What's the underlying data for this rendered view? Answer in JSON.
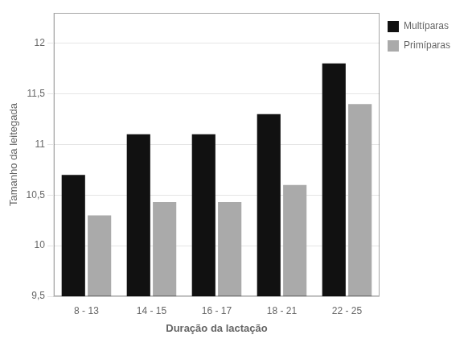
{
  "chart_data": {
    "type": "bar",
    "xlabel": "Duração da lactação",
    "ylabel": "Tamanho da leitegada",
    "categories": [
      "8 - 13",
      "14 - 15",
      "16 - 17",
      "18 - 21",
      "22 - 25"
    ],
    "series": [
      {
        "name": "Multíparas",
        "color": "#111111",
        "values": [
          10.7,
          11.1,
          11.1,
          11.3,
          11.8
        ]
      },
      {
        "name": "Primíparas",
        "color": "#aaaaaa",
        "values": [
          10.3,
          10.43,
          10.43,
          10.6,
          11.4
        ]
      }
    ],
    "ylim": [
      9.5,
      12.3
    ],
    "yticks": [
      {
        "value": 9.5,
        "label": "9,5"
      },
      10,
      {
        "value": 10.5,
        "label": "10,5"
      },
      11,
      {
        "value": 11.5,
        "label": "11,5"
      },
      12
    ],
    "grid": true,
    "legend": "right"
  }
}
